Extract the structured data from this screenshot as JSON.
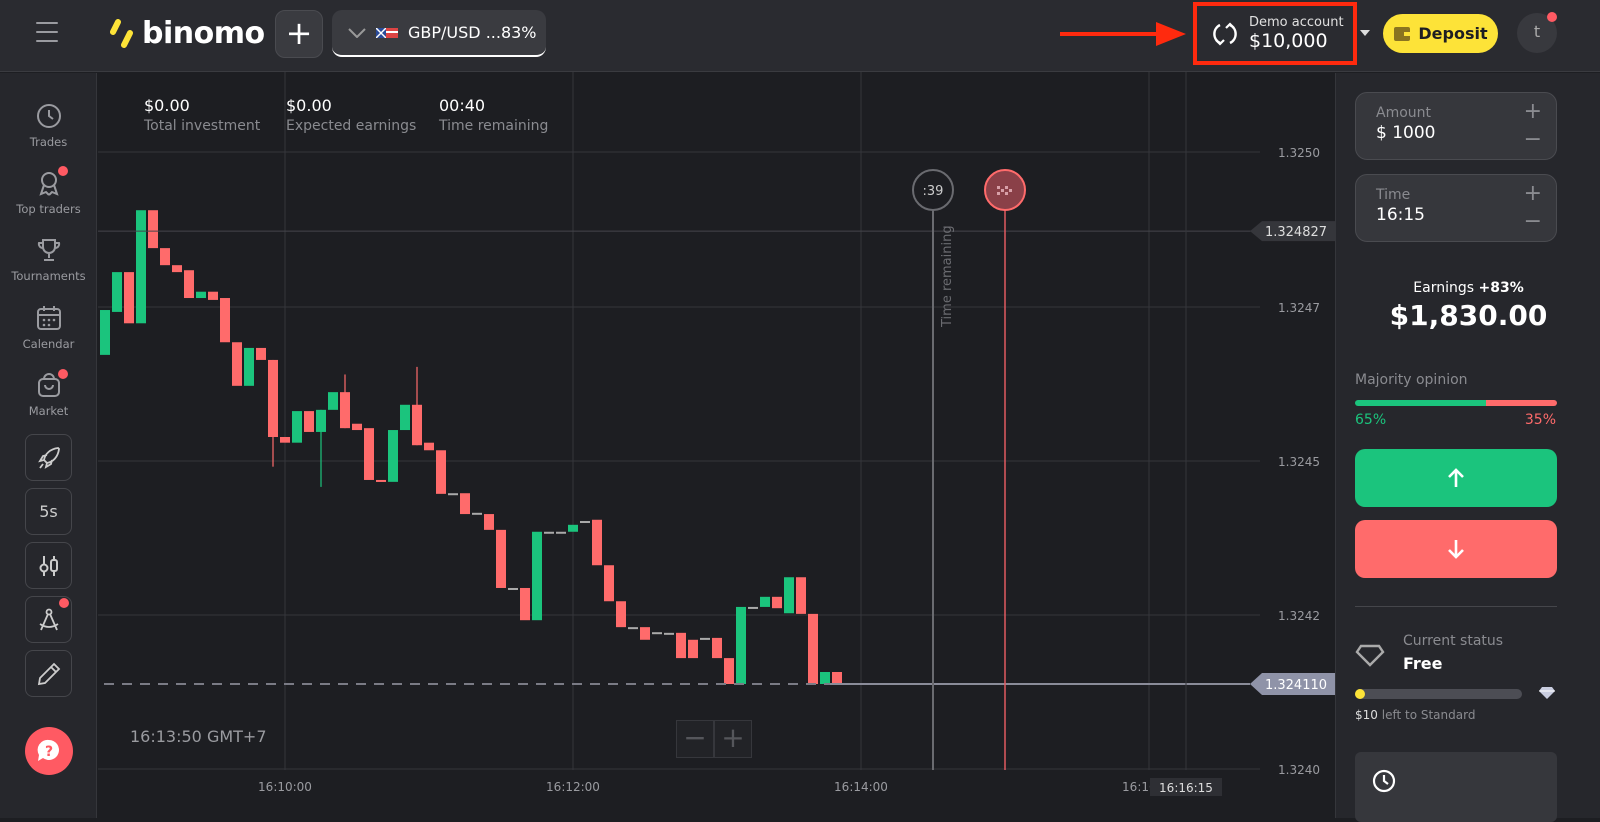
{
  "header": {
    "logo": "binomo",
    "add_label": "+",
    "asset": "GBP/USD ...83%",
    "demo_label": "Demo account",
    "demo_balance": "$10,000",
    "deposit": "Deposit",
    "avatar": "t"
  },
  "sidebar": {
    "items": [
      {
        "label": "Trades",
        "icon": "clock-icon"
      },
      {
        "label": "Top traders",
        "icon": "medal-icon",
        "badge": true
      },
      {
        "label": "Tournaments",
        "icon": "trophy-icon"
      },
      {
        "label": "Calendar",
        "icon": "calendar-icon"
      },
      {
        "label": "Market",
        "icon": "bag-icon",
        "badge": true
      }
    ],
    "tools": [
      "rocket-icon",
      "5s",
      "candles-icon",
      "compass-icon",
      "pencil-icon"
    ]
  },
  "stats": [
    {
      "value": "$0.00",
      "label": "Total investment"
    },
    {
      "value": "$0.00",
      "label": "Expected earnings"
    },
    {
      "value": "00:40",
      "label": "Time remaining"
    }
  ],
  "chart": {
    "clock": "16:13:50 GMT+7",
    "zoom_minus": "−",
    "zoom_plus": "+",
    "timer_badge": ":39",
    "timer_label": "Time remaining",
    "expiry_time_tag": "16:16:15",
    "current_price": "1.324110",
    "marker_price": "1.324827"
  },
  "chart_data": {
    "type": "candlestick",
    "x_start": "16:08:45",
    "interval_s": 5,
    "y_ticks": [
      "1.3250",
      "1.3247",
      "1.3245",
      "1.3242",
      "1.3240"
    ],
    "x_ticks": [
      "16:10:00",
      "16:12:00",
      "16:14:00",
      "16:16:00"
    ],
    "colors": {
      "up": "#1bc47d",
      "down": "#ff6b6b",
      "flat": "#aaaaaa"
    },
    "time_remaining_line": "16:14:30",
    "expiry_line": "16:15:00",
    "candles": [
      [
        1.324631,
        1.324702
      ],
      [
        1.324699,
        1.324762
      ],
      [
        1.324762,
        1.324681
      ],
      [
        1.324681,
        1.32486
      ],
      [
        1.32486,
        1.3248
      ],
      [
        1.3248,
        1.324773
      ],
      [
        1.324773,
        1.324762
      ],
      [
        1.324765,
        1.324721
      ],
      [
        1.324721,
        1.324731
      ],
      [
        1.324731,
        1.324718
      ],
      [
        1.324721,
        1.324651
      ],
      [
        1.324651,
        1.324582
      ],
      [
        1.324582,
        1.324642
      ],
      [
        1.324642,
        1.324623
      ],
      [
        1.324623,
        1.324501,
        1.324623,
        1.324454
      ],
      [
        1.324501,
        1.324492
      ],
      [
        1.324492,
        1.324542
      ],
      [
        1.324542,
        1.324509
      ],
      [
        1.324509,
        1.324544,
        1.324544,
        1.324422
      ],
      [
        1.324544,
        1.324572
      ],
      [
        1.324572,
        1.324515,
        1.3246,
        1.324515
      ],
      [
        1.324522,
        1.324512
      ],
      [
        1.324515,
        1.324433
      ],
      [
        1.324433,
        1.32443
      ],
      [
        1.32443,
        1.324512
      ],
      [
        1.324512,
        1.324552
      ],
      [
        1.324552,
        1.324488,
        1.324612,
        1.324488
      ],
      [
        1.324492,
        1.32448
      ],
      [
        1.32448,
        1.324411
      ],
      [
        1.324412,
        1.324412
      ],
      [
        1.324412,
        1.324379
      ],
      [
        1.324381,
        1.324381
      ],
      [
        1.324379,
        1.324354
      ],
      [
        1.324354,
        1.324262
      ],
      [
        1.324262,
        1.324262
      ],
      [
        1.324262,
        1.324211
      ],
      [
        1.324211,
        1.324351
      ],
      [
        1.324351,
        1.324351
      ],
      [
        1.324351,
        1.324351
      ],
      [
        1.324351,
        1.324362
      ],
      [
        1.324368,
        1.324368
      ],
      [
        1.32437,
        1.324298
      ],
      [
        1.324298,
        1.324241
      ],
      [
        1.324241,
        1.3242
      ],
      [
        1.3242,
        1.3242
      ],
      [
        1.3242,
        1.32418
      ],
      [
        1.324192,
        1.324192
      ],
      [
        1.324191,
        1.324191
      ],
      [
        1.324191,
        1.324151
      ],
      [
        1.32418,
        1.324151
      ],
      [
        1.324183,
        1.324183
      ],
      [
        1.324183,
        1.324151
      ],
      [
        1.324151,
        1.32411
      ],
      [
        1.32411,
        1.324232
      ],
      [
        1.324232,
        1.324232
      ],
      [
        1.324232,
        1.324248
      ],
      [
        1.324248,
        1.32423
      ],
      [
        1.324222,
        1.324279
      ],
      [
        1.324279,
        1.324221
      ],
      [
        1.324221,
        1.32411
      ],
      [
        1.32411,
        1.324129
      ],
      [
        1.324129,
        1.32411
      ]
    ]
  },
  "panel": {
    "amount_label": "Amount",
    "amount": "$ 1000",
    "time_label": "Time",
    "time": "16:15",
    "earnings_label": "Earnings",
    "earnings_pct": "+83%",
    "earnings": "$1,830.00",
    "majority_label": "Majority opinion",
    "up_pct": "65%",
    "down_pct": "35%",
    "up_share": 65,
    "status_label": "Current status",
    "status": "Free",
    "progress_amount": "$10",
    "progress_text": "left to Standard",
    "progress_fraction": 0.03
  },
  "colors": {
    "green": "#1bc47d",
    "red": "#ff6b6b",
    "yellow": "#fde338",
    "highlight": "#ff2a0e"
  }
}
